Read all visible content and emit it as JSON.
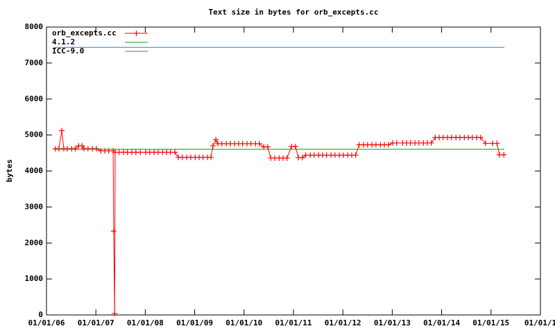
{
  "chart_data": {
    "type": "line",
    "title": "Text size in bytes for orb_excepts.cc",
    "ylabel": "bytes",
    "xlim": [
      2006,
      2016
    ],
    "xticks": [
      {
        "value": 2006,
        "label": "01/01/06"
      },
      {
        "value": 2007,
        "label": "01/01/07"
      },
      {
        "value": 2008,
        "label": "01/01/08"
      },
      {
        "value": 2009,
        "label": "01/01/09"
      },
      {
        "value": 2010,
        "label": "01/01/10"
      },
      {
        "value": 2011,
        "label": "01/01/11"
      },
      {
        "value": 2012,
        "label": "01/01/12"
      },
      {
        "value": 2013,
        "label": "01/01/13"
      },
      {
        "value": 2014,
        "label": "01/01/14"
      },
      {
        "value": 2015,
        "label": "01/01/15"
      },
      {
        "value": 2016,
        "label": "01/01/1"
      }
    ],
    "ylim": [
      0,
      8000
    ],
    "yticks": [
      0,
      1000,
      2000,
      3000,
      4000,
      5000,
      6000,
      7000,
      8000
    ],
    "grid": false,
    "legend": "top-left",
    "series": [
      {
        "name": "orb_excepts.cc",
        "color": "#ff0000",
        "marker": "plus",
        "x": [
          2006.18,
          2006.25,
          2006.31,
          2006.35,
          2006.42,
          2006.51,
          2006.58,
          2006.65,
          2006.72,
          2006.76,
          2006.84,
          2006.93,
          2007.01,
          2007.1,
          2007.18,
          2007.26,
          2007.35,
          2007.36,
          2007.38,
          2007.39,
          2007.47,
          2007.56,
          2007.64,
          2007.73,
          2007.81,
          2007.9,
          2008.01,
          2008.09,
          2008.18,
          2008.26,
          2008.35,
          2008.43,
          2008.51,
          2008.6,
          2008.67,
          2008.75,
          2008.84,
          2008.92,
          2009.01,
          2009.09,
          2009.17,
          2009.26,
          2009.33,
          2009.37,
          2009.43,
          2009.47,
          2009.55,
          2009.64,
          2009.72,
          2009.81,
          2009.89,
          2009.97,
          2010.06,
          2010.14,
          2010.23,
          2010.31,
          2010.4,
          2010.48,
          2010.54,
          2010.62,
          2010.71,
          2010.79,
          2010.87,
          2010.96,
          2011.04,
          2011.1,
          2011.18,
          2011.25,
          2011.34,
          2011.42,
          2011.51,
          2011.59,
          2011.67,
          2011.76,
          2011.84,
          2011.93,
          2012.01,
          2012.1,
          2012.18,
          2012.26,
          2012.33,
          2012.42,
          2012.5,
          2012.59,
          2012.67,
          2012.76,
          2012.84,
          2012.92,
          2013.01,
          2013.09,
          2013.21,
          2013.29,
          2013.37,
          2013.46,
          2013.54,
          2013.63,
          2013.71,
          2013.79,
          2013.87,
          2013.95,
          2014.03,
          2014.12,
          2014.2,
          2014.29,
          2014.37,
          2014.46,
          2014.54,
          2014.62,
          2014.71,
          2014.79,
          2014.89,
          2015.03,
          2015.12,
          2015.17,
          2015.26
        ],
        "values": [
          4620,
          4620,
          5120,
          4620,
          4620,
          4620,
          4620,
          4700,
          4700,
          4620,
          4620,
          4620,
          4620,
          4560,
          4560,
          4560,
          4560,
          2330,
          40,
          4520,
          4520,
          4520,
          4520,
          4520,
          4520,
          4520,
          4520,
          4520,
          4520,
          4520,
          4520,
          4520,
          4520,
          4520,
          4380,
          4380,
          4380,
          4380,
          4380,
          4380,
          4380,
          4380,
          4380,
          4700,
          4870,
          4760,
          4760,
          4760,
          4760,
          4760,
          4760,
          4760,
          4760,
          4760,
          4760,
          4760,
          4670,
          4670,
          4360,
          4360,
          4360,
          4360,
          4360,
          4680,
          4680,
          4370,
          4370,
          4440,
          4440,
          4440,
          4440,
          4440,
          4440,
          4440,
          4440,
          4440,
          4440,
          4440,
          4440,
          4440,
          4730,
          4730,
          4730,
          4730,
          4730,
          4730,
          4730,
          4730,
          4780,
          4780,
          4780,
          4780,
          4780,
          4780,
          4780,
          4780,
          4780,
          4780,
          4930,
          4930,
          4930,
          4930,
          4930,
          4930,
          4930,
          4930,
          4930,
          4930,
          4930,
          4930,
          4770,
          4770,
          4770,
          4450,
          4450
        ]
      },
      {
        "name": "4.1.2",
        "color": "#00a000",
        "x": [
          2006.15,
          2015.27
        ],
        "values": [
          4605,
          4605
        ]
      },
      {
        "name": "ICC-9.0",
        "color": "#2f7fc1",
        "x": [
          2006.15,
          2015.27
        ],
        "values": [
          7437,
          7437
        ]
      }
    ]
  }
}
